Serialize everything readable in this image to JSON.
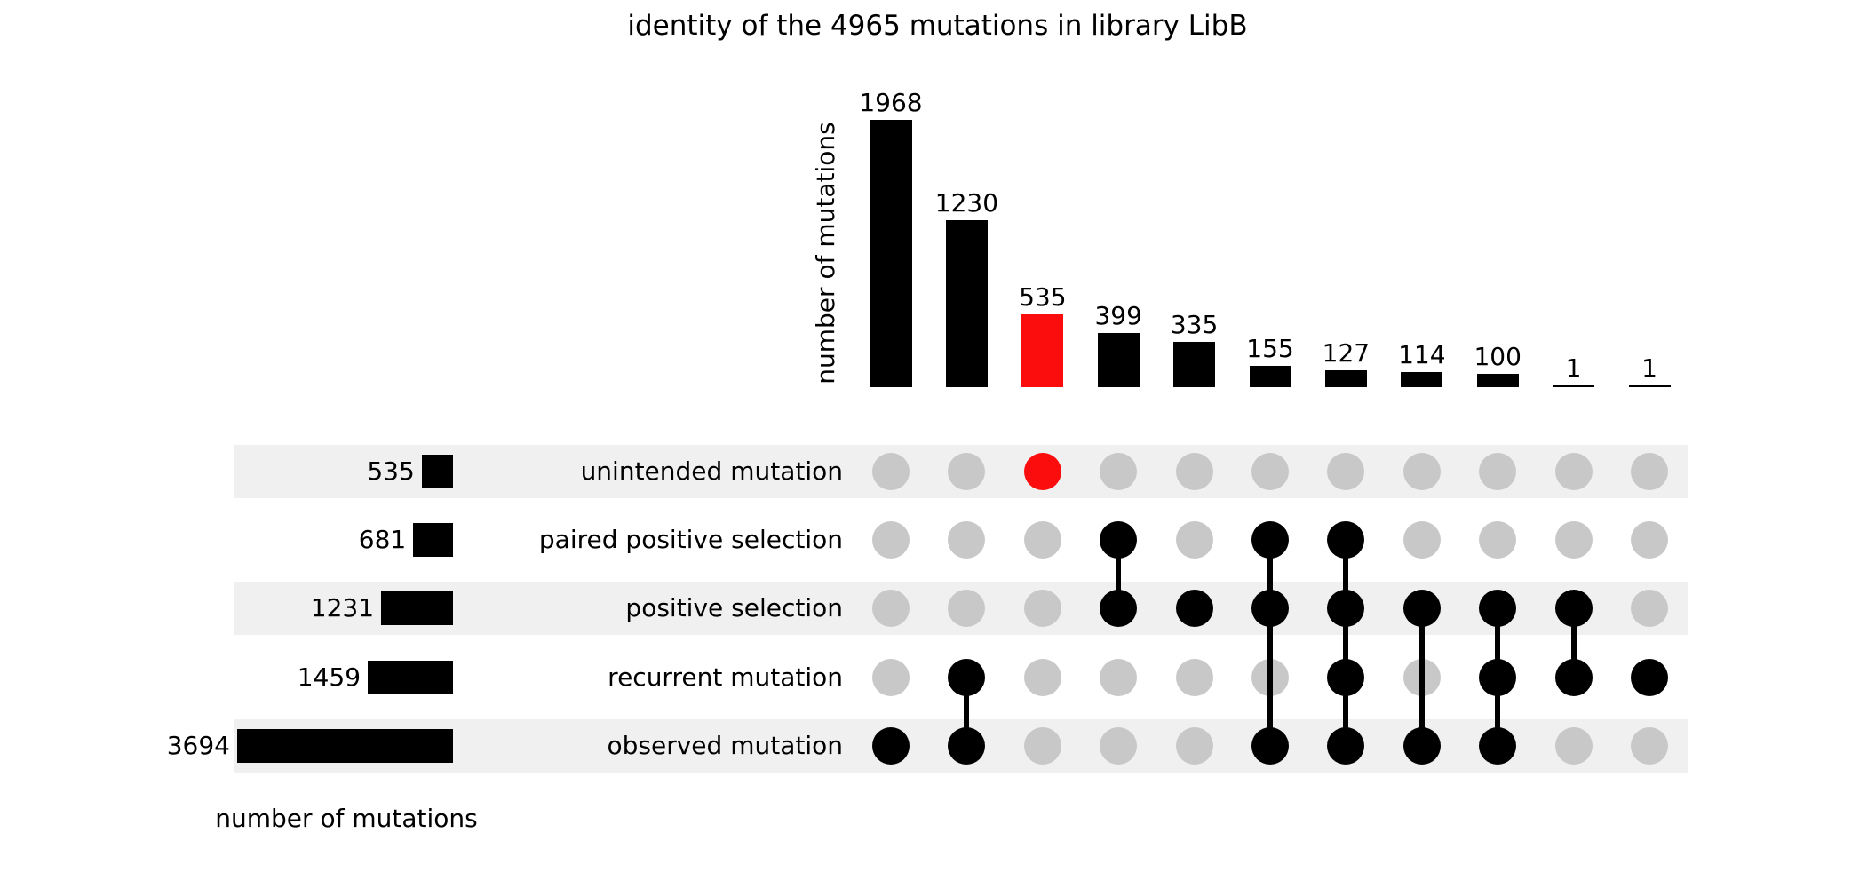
{
  "colors": {
    "bar_black": "#000000",
    "highlight_red": "#fb0d0d",
    "dot_gray": "#c8c8c8",
    "stripe_gray": "#f0f0f0"
  },
  "chart_data": {
    "type": "bar",
    "subtype": "upset-plot",
    "title": "identity of the 4965 mutations in library LibB",
    "total_mutations": 4965,
    "top_axis_label": "number of mutations",
    "left_axis_label": "number of mutations",
    "grid": "off",
    "legend": "none",
    "sets": [
      {
        "label": "unintended mutation",
        "size": 535
      },
      {
        "label": "paired positive selection",
        "size": 681
      },
      {
        "label": "positive selection",
        "size": 1231
      },
      {
        "label": "recurrent mutation",
        "size": 1459
      },
      {
        "label": "observed mutation",
        "size": 3694
      }
    ],
    "intersections": [
      {
        "value": 1968,
        "members": [
          4
        ],
        "highlight": false
      },
      {
        "value": 1230,
        "members": [
          3,
          4
        ],
        "highlight": false
      },
      {
        "value": 535,
        "members": [
          0
        ],
        "highlight": true
      },
      {
        "value": 399,
        "members": [
          1,
          2
        ],
        "highlight": false
      },
      {
        "value": 335,
        "members": [
          2
        ],
        "highlight": false
      },
      {
        "value": 155,
        "members": [
          1,
          2,
          4
        ],
        "highlight": false
      },
      {
        "value": 127,
        "members": [
          1,
          2,
          3,
          4
        ],
        "highlight": false
      },
      {
        "value": 114,
        "members": [
          2,
          4
        ],
        "highlight": false
      },
      {
        "value": 100,
        "members": [
          2,
          3,
          4
        ],
        "highlight": false
      },
      {
        "value": 1,
        "members": [
          2,
          3
        ],
        "highlight": false
      },
      {
        "value": 1,
        "members": [
          3
        ],
        "highlight": false
      }
    ]
  }
}
